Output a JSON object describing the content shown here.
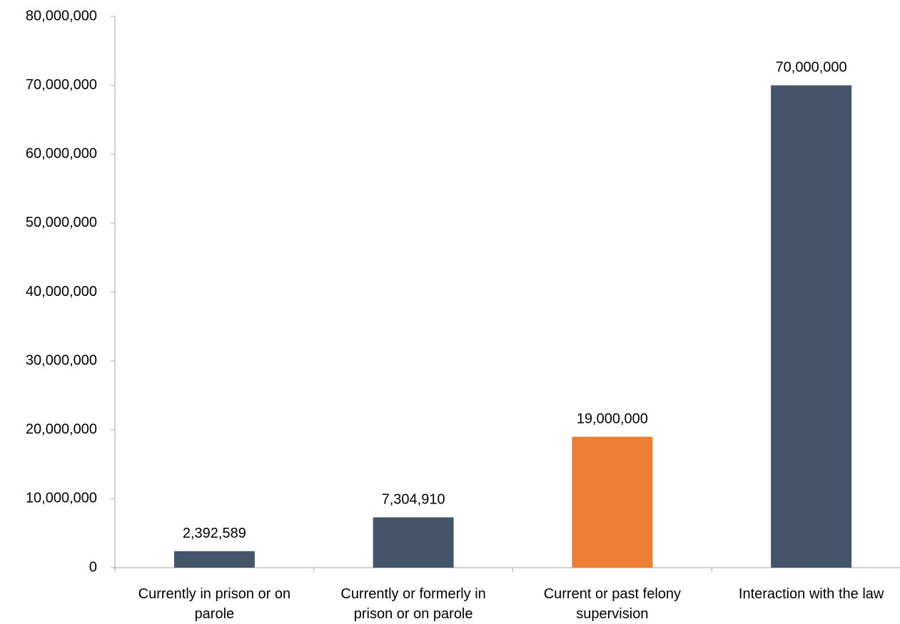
{
  "chart_data": {
    "type": "bar",
    "title": "",
    "xlabel": "",
    "ylabel": "",
    "categories": [
      [
        "Currently in prison or on",
        "parole"
      ],
      [
        "Currently or formerly in",
        "prison or on parole"
      ],
      [
        "Current or past felony",
        "supervision"
      ],
      [
        "Interaction with the law",
        ""
      ]
    ],
    "values": [
      2392589,
      7304910,
      19000000,
      70000000
    ],
    "data_labels": [
      "2,392,589",
      "7,304,910",
      "19,000,000",
      "70,000,000"
    ],
    "bar_colors": [
      "#44546a",
      "#44546a",
      "#ed7d31",
      "#44546a"
    ],
    "ylim": [
      0,
      80000000
    ],
    "y_ticks": [
      0,
      10000000,
      20000000,
      30000000,
      40000000,
      50000000,
      60000000,
      70000000,
      80000000
    ],
    "y_tick_labels": [
      "0",
      "10,000,000",
      "20,000,000",
      "30,000,000",
      "40,000,000",
      "50,000,000",
      "60,000,000",
      "70,000,000",
      "80,000,000"
    ],
    "grid": false,
    "legend": "none"
  }
}
